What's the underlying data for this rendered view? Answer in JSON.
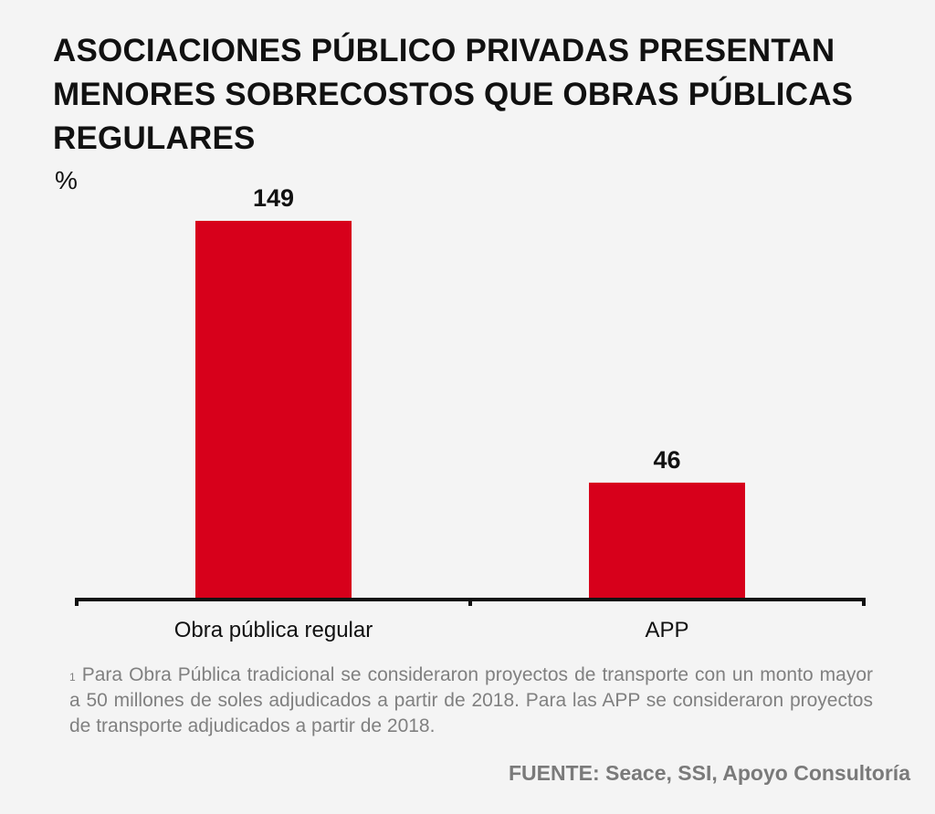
{
  "chart_data": {
    "type": "bar",
    "title": "ASOCIACIONES PÚBLICO PRIVADAS PRESENTAN MENORES SOBRECOSTOS QUE OBRAS PÚBLICAS REGULARES",
    "ylabel": "%",
    "xlabel": "",
    "categories": [
      "Obra pública regular",
      "APP"
    ],
    "values": [
      149,
      46
    ],
    "value_labels": [
      "149",
      "46"
    ],
    "ylim": [
      0,
      149
    ],
    "grid": false,
    "bar_color": "#d7001b"
  },
  "footnote": {
    "marker": "1",
    "text": "Para Obra Pública tradicional se consideraron proyectos de transporte con un monto mayor a 50 millones de soles adjudicados a partir de 2018. Para las APP se consideraron proyectos de transporte adjudicados a partir de 2018."
  },
  "source": "FUENTE: Seace, SSI, Apoyo Consultoría"
}
